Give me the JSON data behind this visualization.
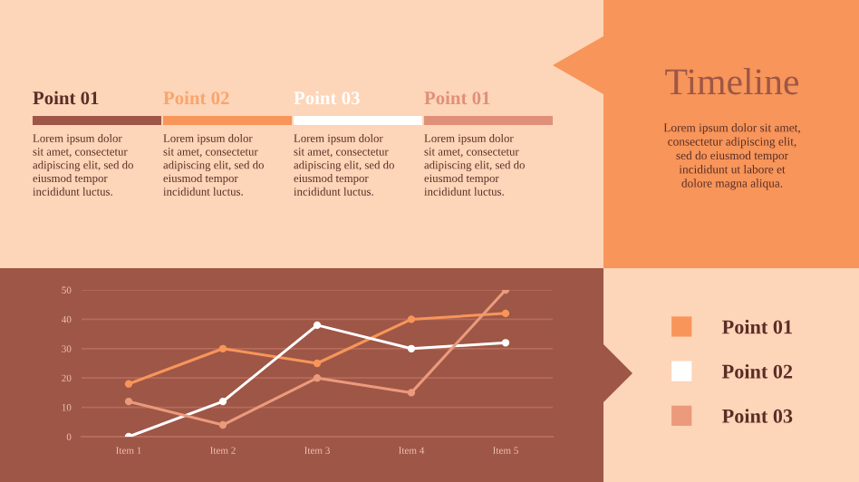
{
  "chart_data": {
    "type": "line",
    "title": "Timeline",
    "annotations": [
      "Point 01",
      "Point 02",
      "Point 03",
      "Point 01",
      "Lorem ipsum dolor\nsit amet, consectetur\nadipiscing elit, sed do\neiusmod tempor\nincididunt luctus.",
      "Lorem ipsum dolor\nsit amet, consectetur\nadipiscing elit, sed do\neiusmod tempor\nincididunt luctus.",
      "Lorem ipsum dolor\nsit amet, consectetur\nadipiscing elit, sed do\neiusmod tempor\nincididunt luctus.",
      "Lorem ipsum dolor\nsit amet, consectetur\nadipiscing elit, sed do\neiusmod tempor\nincididunt luctus.",
      "Lorem ipsum dolor sit amet,\nconsectetur adipiscing elit,\nsed do eiusmod tempor\nincididunt ut labore et\ndolore magna aliqua."
    ],
    "categories": [
      "Item 1",
      "Item 2",
      "Item 3",
      "Item 4",
      "Item 5"
    ],
    "series": [
      {
        "name": "Point 01",
        "color": "#f7955a",
        "values": [
          18,
          30,
          25,
          40,
          42
        ]
      },
      {
        "name": "Point 02",
        "color": "#ffffff",
        "values": [
          0,
          12,
          38,
          30,
          32
        ]
      },
      {
        "name": "Point 03",
        "color": "#eb9a7c",
        "values": [
          12,
          4,
          20,
          15,
          50
        ]
      }
    ],
    "ylim": [
      0,
      50
    ],
    "yticks": [
      0,
      10,
      20,
      30,
      40,
      50
    ],
    "grid": "y",
    "legend": "right",
    "marker": "circle",
    "line_style": "solid"
  }
}
